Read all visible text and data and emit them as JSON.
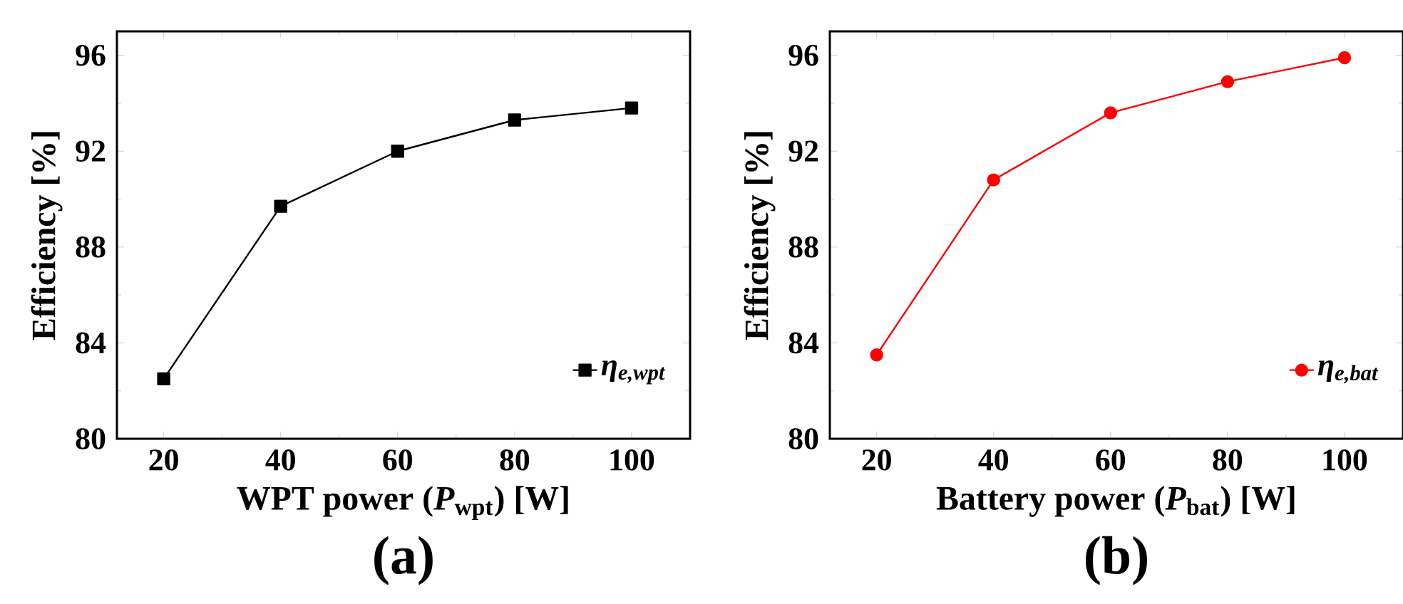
{
  "chart_data": [
    {
      "type": "line",
      "title": "(a)",
      "xlabel": "WPT power (*P*$_{wpt}$) [W]",
      "ylabel": "Efficiency [%]",
      "x": [
        20,
        40,
        60,
        80,
        100
      ],
      "series": [
        {
          "name": "η$_{e,wpt}$",
          "color": "#000000",
          "values": [
            82.5,
            89.7,
            92.0,
            93.3,
            93.8
          ]
        }
      ],
      "xlim": [
        12,
        110
      ],
      "ylim": [
        80,
        97
      ],
      "xticks": [
        20,
        40,
        60,
        80,
        100
      ],
      "yticks": [
        80,
        84,
        88,
        92,
        96
      ],
      "marker": "square",
      "legend": "bottom right"
    },
    {
      "type": "line",
      "title": "(b)",
      "xlabel": "Battery power (*P*$_{bat}$) [W]",
      "ylabel": "Efficiency [%]",
      "x": [
        20,
        40,
        60,
        80,
        100
      ],
      "series": [
        {
          "name": "η$_{e,bat}$",
          "color": "#ff0000",
          "values": [
            83.5,
            90.8,
            93.6,
            94.9,
            95.9
          ]
        }
      ],
      "xlim": [
        12,
        110
      ],
      "ylim": [
        80,
        97
      ],
      "xticks": [
        20,
        40,
        60,
        80,
        100
      ],
      "yticks": [
        80,
        84,
        88,
        92,
        96
      ],
      "marker": "circle",
      "legend": "bottom right"
    }
  ]
}
